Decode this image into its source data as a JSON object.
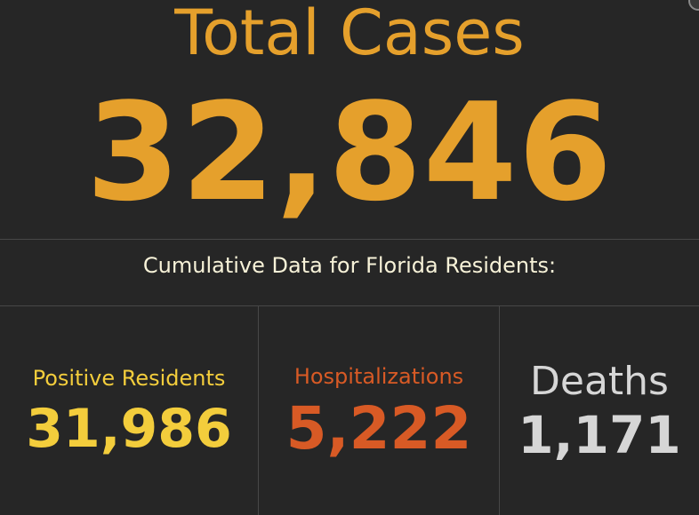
{
  "summary": {
    "title": "Total Cases",
    "total_cases": "32,846",
    "subtitle": "Cumulative Data for Florida Residents:"
  },
  "stats": {
    "positive_residents": {
      "label": "Positive Residents",
      "value": "31,986",
      "color": "#f3cd3c"
    },
    "hospitalizations": {
      "label": "Hospitalizations",
      "value": "5,222",
      "color": "#d85a25"
    },
    "deaths": {
      "label": "Deaths",
      "value": "1,171",
      "color": "#d6d6d6"
    }
  },
  "colors": {
    "background": "#262626",
    "total_accent": "#e5a02c",
    "divider": "#474747",
    "subtitle_text": "#f7f2d8"
  }
}
